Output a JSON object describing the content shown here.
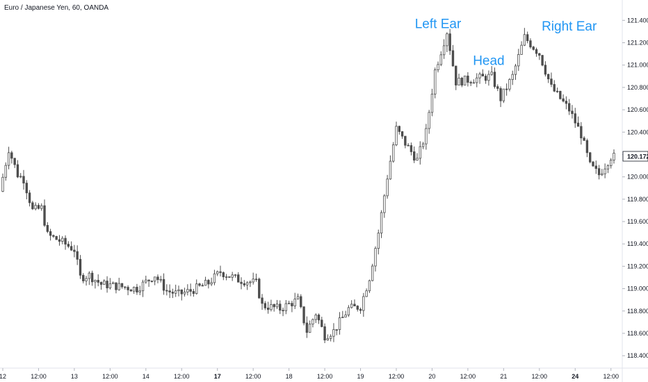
{
  "header": {
    "title": "Euro / Japanese Yen, 60, OANDA"
  },
  "colors": {
    "candle": "#4d4d4d",
    "hollow": "#ffffff",
    "annotation": "#2196f3",
    "axis": "#b2b5be",
    "text": "#131722",
    "last_price_bg": "#ffffff"
  },
  "chart_data": {
    "type": "candlestick",
    "title": "Euro / Japanese Yen, 60, OANDA",
    "symbol": "EURJPY",
    "interval": "60",
    "source": "OANDA",
    "ylim": [
      118.32,
      121.52
    ],
    "yticks": [
      118.4,
      118.6,
      118.8,
      119.0,
      119.2,
      119.4,
      119.6,
      119.8,
      120.0,
      120.2,
      120.4,
      120.6,
      120.8,
      121.0,
      121.2,
      121.4
    ],
    "ytick_labels": [
      "118.400",
      "118.600",
      "118.800",
      "119.000",
      "119.200",
      "119.400",
      "119.600",
      "119.800",
      "120.000",
      "120.200",
      "120.400",
      "120.600",
      "120.800",
      "121.000",
      "121.200",
      "121.400"
    ],
    "last_price": "120.172",
    "xtick_labels": [
      "12",
      "12:00",
      "13",
      "12:00",
      "14",
      "12:00",
      "17",
      "12:00",
      "18",
      "12:00",
      "19",
      "12:00",
      "20",
      "12:00",
      "21",
      "12:00",
      "24",
      "12:00"
    ],
    "xtick_index": [
      0,
      12,
      24,
      36,
      48,
      60,
      72,
      84,
      96,
      108,
      120,
      132,
      144,
      156,
      168,
      180,
      192,
      204
    ],
    "annotations": [
      {
        "text": "Left Ear",
        "index": 146,
        "price": 121.33
      },
      {
        "text": "Head",
        "index": 163,
        "price": 121.0
      },
      {
        "text": "Right Ear",
        "index": 190,
        "price": 121.31
      }
    ],
    "waypoints": [
      [
        0,
        119.87
      ],
      [
        3,
        120.25
      ],
      [
        6,
        120.02
      ],
      [
        8,
        119.98
      ],
      [
        11,
        119.7
      ],
      [
        14,
        119.72
      ],
      [
        16,
        119.48
      ],
      [
        20,
        119.43
      ],
      [
        25,
        119.35
      ],
      [
        27,
        119.1
      ],
      [
        30,
        119.12
      ],
      [
        34,
        119.04
      ],
      [
        40,
        119.02
      ],
      [
        46,
        119.0
      ],
      [
        52,
        119.12
      ],
      [
        56,
        118.98
      ],
      [
        60,
        118.95
      ],
      [
        64,
        118.98
      ],
      [
        70,
        119.05
      ],
      [
        74,
        119.15
      ],
      [
        80,
        119.08
      ],
      [
        86,
        119.05
      ],
      [
        88,
        118.85
      ],
      [
        94,
        118.82
      ],
      [
        100,
        118.9
      ],
      [
        103,
        118.62
      ],
      [
        106,
        118.78
      ],
      [
        109,
        118.58
      ],
      [
        112,
        118.62
      ],
      [
        117,
        118.82
      ],
      [
        121,
        118.84
      ],
      [
        124,
        119.1
      ],
      [
        127,
        119.5
      ],
      [
        130,
        120.0
      ],
      [
        133,
        120.43
      ],
      [
        136,
        120.3
      ],
      [
        140,
        120.15
      ],
      [
        143,
        120.4
      ],
      [
        146,
        120.95
      ],
      [
        150,
        121.3
      ],
      [
        153,
        120.85
      ],
      [
        160,
        120.88
      ],
      [
        165,
        120.9
      ],
      [
        168,
        120.7
      ],
      [
        172,
        120.9
      ],
      [
        176,
        121.25
      ],
      [
        181,
        121.1
      ],
      [
        185,
        120.8
      ],
      [
        191,
        120.6
      ],
      [
        195,
        120.38
      ],
      [
        198,
        120.1
      ],
      [
        201,
        120.02
      ],
      [
        205,
        120.18
      ]
    ],
    "n_candles": 206
  }
}
